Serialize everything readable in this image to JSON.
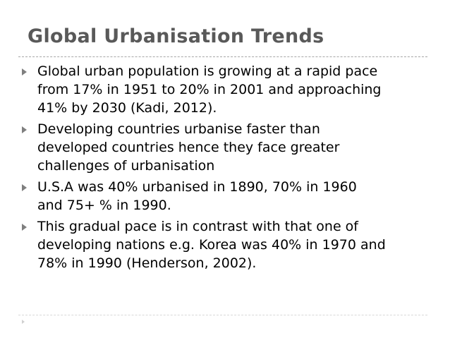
{
  "slide": {
    "title": "Global Urbanisation Trends",
    "bullets": [
      {
        "lines": [
          "Global urban population is growing at a rapid pace",
          "from 17% in 1951 to 20% in 2001 and approaching",
          "41% by 2030 (Kadi, 2012)."
        ]
      },
      {
        "lines": [
          "Developing countries urbanise faster than",
          "developed countries hence they face greater",
          "challenges of urbanisation"
        ]
      },
      {
        "lines": [
          "U.S.A was 40% urbanised in 1890, 70% in 1960",
          "and 75+ % in 1990."
        ]
      },
      {
        "lines": [
          "This gradual pace is in contrast with that one of",
          "developing nations e.g. Korea was 40% in 1970 and",
          "78% in 1990 (Henderson, 2002)."
        ]
      }
    ]
  },
  "colors": {
    "title": "#595959",
    "text": "#000000",
    "bullet": "#7f7f7f",
    "divider": "#a6a6a6"
  },
  "icons": {
    "bullet": "triangle-right-bullet-icon",
    "nav": "triangle-right-nav-icon"
  }
}
